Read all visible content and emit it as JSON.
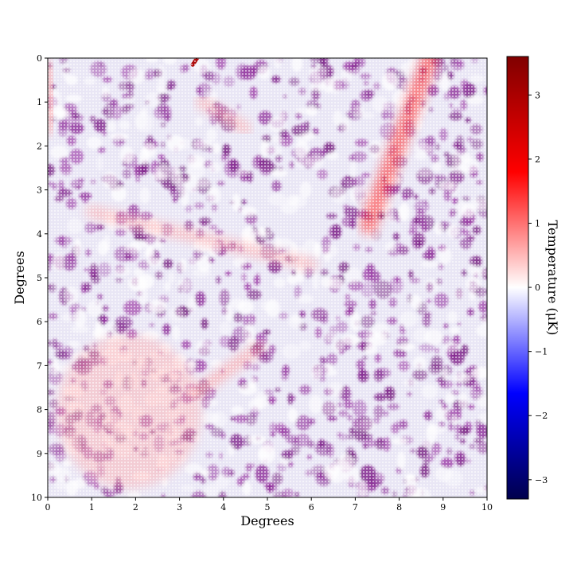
{
  "chart_data": {
    "type": "heatmap",
    "title": "",
    "xlabel": "Degrees",
    "ylabel": "Degrees",
    "xlim": [
      0,
      10
    ],
    "ylim": [
      0,
      10
    ],
    "y_inverted": true,
    "x_ticks": [
      0,
      1,
      2,
      3,
      4,
      5,
      6,
      7,
      8,
      9,
      10
    ],
    "y_ticks": [
      0,
      1,
      2,
      3,
      4,
      5,
      6,
      7,
      8,
      9,
      10
    ],
    "x_tick_labels": [
      "0",
      "1",
      "2",
      "3",
      "4",
      "5",
      "6",
      "7",
      "8",
      "9",
      "10"
    ],
    "y_tick_labels": [
      "0",
      "1",
      "2",
      "3",
      "4",
      "5",
      "6",
      "7",
      "8",
      "9",
      "10"
    ],
    "colormap": "seismic",
    "colormap_colors": [
      "#00004c",
      "#0000ff",
      "#ffffff",
      "#ff0000",
      "#800000"
    ],
    "grid": false,
    "colorbar": {
      "label": "Temperature (μK)",
      "range": [
        -3.3,
        3.6
      ],
      "ticks": [
        -3,
        -2,
        -1,
        0,
        1,
        2,
        3
      ],
      "tick_labels": [
        "−3",
        "−2",
        "−1",
        "0",
        "1",
        "2",
        "3"
      ]
    },
    "features": [
      {
        "description": "diagonal warm streak",
        "from": [
          7.3,
          3.8
        ],
        "to": [
          8.7,
          0.0
        ],
        "peak_temperature": 1.5
      },
      {
        "description": "faint warm streak",
        "from": [
          1.0,
          3.5
        ],
        "to": [
          6.0,
          4.7
        ],
        "peak_temperature": 0.6
      },
      {
        "description": "warm patch",
        "from": [
          0.2,
          6.3
        ],
        "to": [
          3.5,
          9.8
        ],
        "peak_temperature": 0.6
      },
      {
        "description": "warm streak",
        "from": [
          3.4,
          7.6
        ],
        "to": [
          4.8,
          6.6
        ],
        "peak_temperature": 0.7
      },
      {
        "description": "hot spot at top edge",
        "from": [
          3.3,
          0.15
        ],
        "to": [
          3.4,
          0.0
        ],
        "peak_temperature": 3.0
      },
      {
        "description": "warm streak",
        "from": [
          3.5,
          1.0
        ],
        "to": [
          4.5,
          1.6
        ],
        "peak_temperature": 0.6
      },
      {
        "description": "warm strip at left edge",
        "from": [
          0.0,
          0.2
        ],
        "to": [
          0.1,
          1.6
        ],
        "peak_temperature": 0.7
      }
    ],
    "background_texture": "small-scale purple/violet mottled noise around 0 to -0.5 μK"
  }
}
